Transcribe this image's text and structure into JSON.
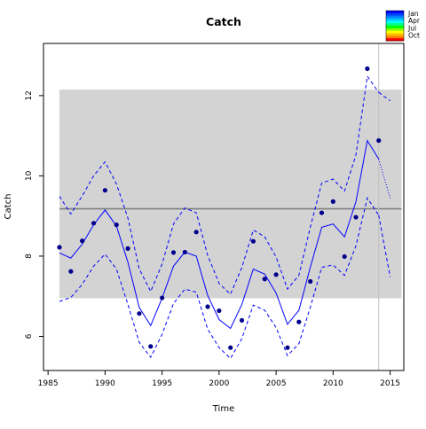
{
  "chart_data": {
    "type": "line",
    "title": "Catch",
    "xlabel": "Time",
    "ylabel": "Catch",
    "xlim": [
      1984.6,
      2016.2
    ],
    "ylim": [
      5.15,
      13.3
    ],
    "x_ticks": [
      1985,
      1990,
      1995,
      2000,
      2005,
      2010,
      2015
    ],
    "y_ticks": [
      6,
      8,
      10,
      12
    ],
    "grid": false,
    "band": {
      "x0": 1986,
      "x1": 2016,
      "y0": 6.95,
      "y1": 12.15,
      "color": "#d3d3d3"
    },
    "hline": {
      "y": 9.18,
      "color": "#808080"
    },
    "vline": {
      "x": 2014,
      "color": "#bfbfbf"
    },
    "observed": {
      "color": "#00008b",
      "x": [
        1986,
        1987,
        1988,
        1989,
        1990,
        1991,
        1992,
        1993,
        1994,
        1995,
        1996,
        1997,
        1998,
        1999,
        2000,
        2001,
        2002,
        2003,
        2004,
        2005,
        2006,
        2007,
        2008,
        2009,
        2010,
        2011,
        2012,
        2013,
        2014
      ],
      "y": [
        8.22,
        7.62,
        8.38,
        8.82,
        9.64,
        8.78,
        8.19,
        6.57,
        5.75,
        6.96,
        8.09,
        8.1,
        8.6,
        6.74,
        6.64,
        5.72,
        6.4,
        8.37,
        7.43,
        7.54,
        5.72,
        6.36,
        7.37,
        9.08,
        9.36,
        7.99,
        8.97,
        12.67,
        10.88
      ]
    },
    "fit": {
      "color": "#0000ff",
      "x": [
        1986,
        1987,
        1988,
        1989,
        1990,
        1991,
        1992,
        1993,
        1994,
        1995,
        1996,
        1997,
        1998,
        1999,
        2000,
        2001,
        2002,
        2003,
        2004,
        2005,
        2006,
        2007,
        2008,
        2009,
        2010,
        2011,
        2012,
        2013,
        2014
      ],
      "y": [
        8.08,
        7.95,
        8.3,
        8.78,
        9.15,
        8.75,
        7.85,
        6.72,
        6.27,
        6.95,
        7.75,
        8.1,
        8.0,
        7.02,
        6.42,
        6.2,
        6.8,
        7.68,
        7.55,
        7.08,
        6.3,
        6.65,
        7.72,
        8.72,
        8.8,
        8.48,
        9.35,
        10.88,
        10.42
      ]
    },
    "fit_upper": {
      "color": "#0000ff",
      "x": [
        1986,
        1987,
        1988,
        1989,
        1990,
        1991,
        1992,
        1993,
        1994,
        1995,
        1996,
        1997,
        1998,
        1999,
        2000,
        2001,
        2002,
        2003,
        2004,
        2005,
        2006,
        2007,
        2008,
        2009,
        2010,
        2011,
        2012,
        2013,
        2014
      ],
      "y": [
        9.49,
        9.05,
        9.5,
        10.0,
        10.35,
        9.8,
        8.95,
        7.68,
        7.12,
        7.8,
        8.8,
        9.2,
        9.08,
        8.02,
        7.32,
        7.05,
        7.72,
        8.65,
        8.48,
        7.98,
        7.18,
        7.52,
        8.72,
        9.82,
        9.92,
        9.62,
        10.52,
        12.48,
        12.08
      ]
    },
    "fit_lower": {
      "color": "#0000ff",
      "x": [
        1986,
        1987,
        1988,
        1989,
        1990,
        1991,
        1992,
        1993,
        1994,
        1995,
        1996,
        1997,
        1998,
        1999,
        2000,
        2001,
        2002,
        2003,
        2004,
        2005,
        2006,
        2007,
        2008,
        2009,
        2010,
        2011,
        2012,
        2013,
        2014
      ],
      "y": [
        6.87,
        6.97,
        7.3,
        7.75,
        8.05,
        7.68,
        6.8,
        5.85,
        5.48,
        6.05,
        6.82,
        7.18,
        7.1,
        6.18,
        5.72,
        5.45,
        5.95,
        6.78,
        6.65,
        6.22,
        5.52,
        5.82,
        6.72,
        7.72,
        7.78,
        7.52,
        8.25,
        9.45,
        9.02
      ]
    },
    "forecast": {
      "color": "#0000ff",
      "x": [
        2014,
        2015
      ],
      "y": [
        10.42,
        9.45
      ]
    },
    "forecast_upper": {
      "color": "#0000ff",
      "x": [
        2014,
        2015
      ],
      "y": [
        12.08,
        11.87
      ]
    },
    "forecast_lower": {
      "color": "#0000ff",
      "x": [
        2014,
        2015
      ],
      "y": [
        9.02,
        7.48
      ]
    },
    "legend": {
      "placement": "top-right",
      "labels": [
        "Jan",
        "Apr",
        "Jul",
        "Oct"
      ],
      "colors": [
        "#0000ff",
        "#0040ff",
        "#0080ff",
        "#00bfff",
        "#00ffff",
        "#00ff80",
        "#00ff00",
        "#80ff00",
        "#ffff00",
        "#ffbf00",
        "#ff8000",
        "#ff0000"
      ]
    }
  }
}
